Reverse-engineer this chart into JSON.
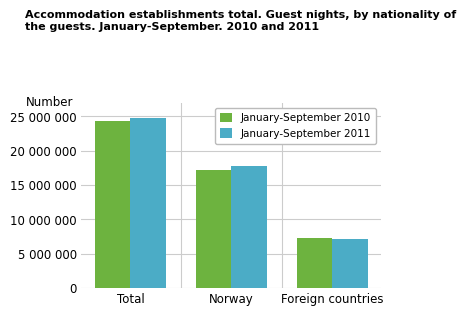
{
  "title": "Accommodation establishments total. Guest nights, by nationality of\nthe guests. January-September. 2010 and 2011",
  "ylabel": "Number",
  "categories": [
    "Total",
    "Norway",
    "Foreign countries"
  ],
  "values_2010": [
    24300000,
    17200000,
    7300000
  ],
  "values_2011": [
    24700000,
    17700000,
    7200000
  ],
  "color_2010": "#6db33f",
  "color_2011": "#4bacc6",
  "legend_2010": "January-September 2010",
  "legend_2011": "January-September 2011",
  "ylim": [
    0,
    27000000
  ],
  "yticks": [
    0,
    5000000,
    10000000,
    15000000,
    20000000,
    25000000
  ],
  "background_color": "#ffffff",
  "grid_color": "#cccccc"
}
